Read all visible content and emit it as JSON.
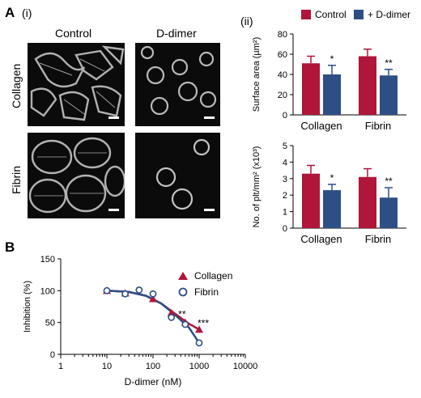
{
  "panel_a": {
    "letter": "A",
    "sub_i": "(i)",
    "sub_ii": "(ii)",
    "col_labels": [
      "Control",
      "D-dimer"
    ],
    "row_labels": [
      "Collagen",
      "Fibrin"
    ]
  },
  "panel_b": {
    "letter": "B"
  },
  "colors": {
    "control": "#b0153a",
    "ddimer": "#2e4f86",
    "collagen_line": "#b0153a",
    "fibrin_line": "#2e4f86"
  },
  "chart_data": [
    {
      "type": "bar",
      "categories": [
        "Collagen",
        "Fibrin"
      ],
      "series": [
        {
          "name": "Control",
          "values": [
            51,
            58
          ],
          "errors": [
            7,
            7
          ]
        },
        {
          "name": "+ D-dimer",
          "values": [
            40,
            39
          ],
          "errors": [
            9,
            6
          ]
        }
      ],
      "ylabel": "Surface area (µm²)",
      "ylim": [
        0,
        80
      ],
      "yticks": [
        "0",
        "20",
        "40",
        "60",
        "80"
      ],
      "significance": [
        "*",
        "**"
      ],
      "legend_position": "top"
    },
    {
      "type": "bar",
      "categories": [
        "Collagen",
        "Fibrin"
      ],
      "series": [
        {
          "name": "Control",
          "values": [
            3.3,
            3.1
          ],
          "errors": [
            0.5,
            0.5
          ]
        },
        {
          "name": "+ D-dimer",
          "values": [
            2.3,
            1.85
          ],
          "errors": [
            0.35,
            0.6
          ]
        }
      ],
      "ylabel": "No. of plt/mm² (x10³)",
      "ylim": [
        0,
        5
      ],
      "yticks": [
        "0",
        "1",
        "2",
        "3",
        "4",
        "5"
      ],
      "significance": [
        "*",
        "**"
      ]
    },
    {
      "type": "scatter",
      "xlabel": "D-dimer (nM)",
      "ylabel": "Inhibition (%)",
      "xscale": "log",
      "xlim": [
        1,
        10000
      ],
      "ylim": [
        0,
        150
      ],
      "xticks": [
        "1",
        "10",
        "100",
        "1000",
        "10000"
      ],
      "yticks": [
        "0",
        "50",
        "100",
        "150"
      ],
      "series": [
        {
          "name": "Collagen",
          "marker": "triangle",
          "points": [
            [
              10,
              100
            ],
            [
              25,
              96
            ],
            [
              100,
              87
            ],
            [
              250,
              65
            ],
            [
              500,
              50
            ],
            [
              1000,
              39
            ]
          ]
        },
        {
          "name": "Fibrin",
          "marker": "circle",
          "points": [
            [
              10,
              100
            ],
            [
              25,
              95
            ],
            [
              50,
              101
            ],
            [
              100,
              95
            ],
            [
              250,
              58
            ],
            [
              500,
              47
            ],
            [
              1000,
              18
            ]
          ]
        }
      ],
      "fit_curves": [
        {
          "name": "Collagen",
          "points": [
            [
              10,
              100
            ],
            [
              30,
              98
            ],
            [
              70,
              92
            ],
            [
              150,
              80
            ],
            [
              300,
              64
            ],
            [
              600,
              48
            ],
            [
              1000,
              39
            ]
          ]
        },
        {
          "name": "Fibrin",
          "points": [
            [
              10,
              100
            ],
            [
              30,
              98
            ],
            [
              70,
              92
            ],
            [
              150,
              80
            ],
            [
              300,
              62
            ],
            [
              600,
              42
            ],
            [
              1000,
              18
            ]
          ]
        }
      ],
      "annotations": [
        "**",
        "***"
      ],
      "legend_position": "top-right"
    }
  ]
}
